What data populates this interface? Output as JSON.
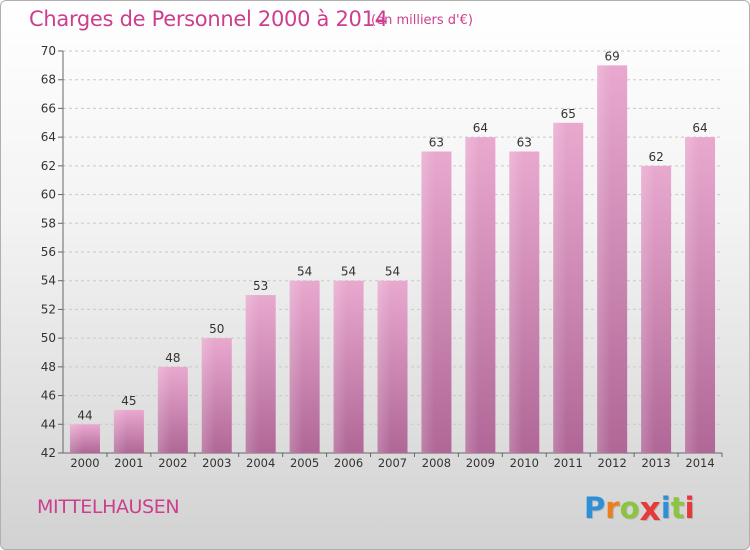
{
  "header": {
    "title": "Charges de Personnel 2000 à 2014",
    "subtitle": "(en milliers d'€)"
  },
  "footer": {
    "commune": "MITTELHAUSEN",
    "logo_letters": [
      "P",
      "r",
      "o",
      "x",
      "i",
      "t",
      "i"
    ],
    "logo_colors": [
      "#2f8fd6",
      "#e8801f",
      "#8cc33f",
      "#e63a3a",
      "#2f8fd6",
      "#8cc33f",
      "#e63a3a"
    ]
  },
  "colors": {
    "bar": "#dd98c0",
    "bar_dark": "#b06495",
    "grid": "#c8c8c8",
    "text": "#333333",
    "accent": "#cc3f8e"
  },
  "chart_data": {
    "type": "bar",
    "title": "Charges de Personnel 2000 à 2014",
    "subtitle": "(en milliers d'€)",
    "categories": [
      "2000",
      "2001",
      "2002",
      "2003",
      "2004",
      "2005",
      "2006",
      "2007",
      "2008",
      "2009",
      "2010",
      "2011",
      "2012",
      "2013",
      "2014"
    ],
    "values": [
      44,
      45,
      48,
      50,
      53,
      54,
      54,
      54,
      63,
      64,
      63,
      65,
      69,
      62,
      64
    ],
    "ylim": [
      42,
      70
    ],
    "yticks": [
      42,
      44,
      46,
      48,
      50,
      52,
      54,
      56,
      58,
      60,
      62,
      64,
      66,
      68,
      70
    ],
    "grid": true,
    "data_labels": true,
    "xlabel": "",
    "ylabel": ""
  }
}
